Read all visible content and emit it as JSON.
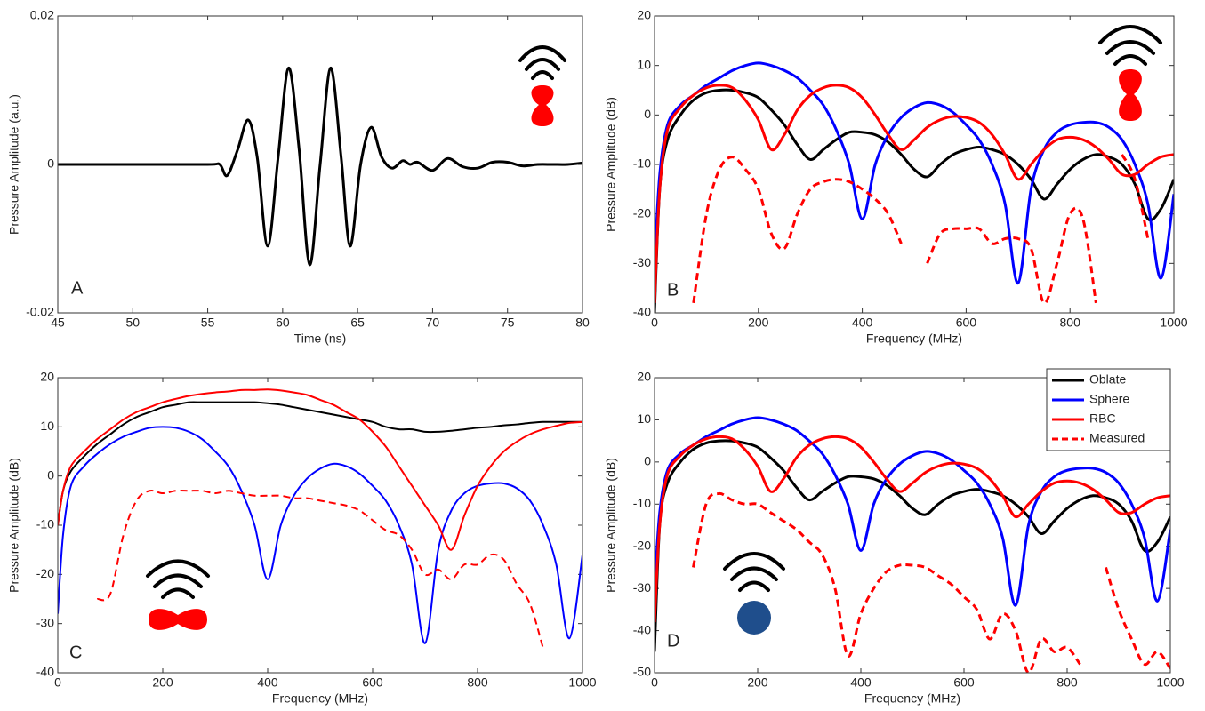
{
  "chart_data": [
    {
      "type": "line",
      "panel_label": "A",
      "xlabel": "Time (ns)",
      "ylabel": "Pressure Amplitude (a.u.)",
      "xlim": [
        45,
        80
      ],
      "xticks": [
        45,
        50,
        55,
        60,
        65,
        70,
        75,
        80
      ],
      "ylim": [
        -0.02,
        0.02
      ],
      "yticks": [
        -0.02,
        0,
        0.02
      ],
      "x": [
        45,
        50,
        55,
        55.8,
        56.3,
        57,
        57.7,
        58.3,
        59,
        59.7,
        60.4,
        61.1,
        61.8,
        62.5,
        63.2,
        63.9,
        64.5,
        65.2,
        65.9,
        66.6,
        67.3,
        68,
        68.5,
        69,
        70,
        71,
        72,
        73,
        74,
        75,
        76,
        77,
        78,
        79,
        80
      ],
      "series": [
        {
          "color": "#000000",
          "style": "solid",
          "values": [
            0,
            0,
            0,
            0,
            -0.0015,
            0.002,
            0.006,
            0.001,
            -0.011,
            0.001,
            0.013,
            0.002,
            -0.0135,
            0,
            0.013,
            0.001,
            -0.011,
            0,
            0.005,
            0.001,
            -0.0005,
            0.0005,
            0,
            0.0003,
            -0.0008,
            0.0008,
            -0.0003,
            -0.0005,
            0.0003,
            0.0003,
            -0.0002,
            0,
            0,
            0,
            0.0002
          ]
        }
      ]
    },
    {
      "type": "line",
      "panel_label": "B",
      "xlabel": "Frequency (MHz)",
      "ylabel": "Pressure Amplitude (dB)",
      "xlim": [
        0,
        1000
      ],
      "xticks": [
        0,
        200,
        400,
        600,
        800,
        1000
      ],
      "ylim": [
        -40,
        20
      ],
      "yticks": [
        -40,
        -30,
        -20,
        -10,
        0,
        10,
        20
      ],
      "x": [
        0,
        10,
        25,
        50,
        75,
        100,
        125,
        150,
        175,
        200,
        225,
        250,
        275,
        300,
        325,
        350,
        375,
        400,
        425,
        450,
        475,
        500,
        525,
        550,
        575,
        600,
        625,
        650,
        675,
        700,
        725,
        750,
        775,
        800,
        825,
        850,
        875,
        900,
        925,
        950,
        975,
        1000
      ],
      "series": [
        {
          "color": "#000000",
          "style": "solid",
          "values": [
            -40,
            -15,
            -5,
            0,
            3,
            4.5,
            5,
            5,
            4.5,
            3.5,
            1,
            -2,
            -6,
            -9,
            -7,
            -5,
            -3.5,
            -3.5,
            -4,
            -5.5,
            -8,
            -11,
            -12.5,
            -10,
            -8,
            -7,
            -6.5,
            -7,
            -8,
            -10,
            -13,
            -17,
            -14,
            -11,
            -9,
            -8,
            -8.5,
            -10,
            -14,
            -21,
            -19,
            -13
          ]
        },
        {
          "color": "#0000ff",
          "style": "solid",
          "values": [
            -30,
            -12,
            -2,
            2,
            4,
            6,
            7.5,
            9,
            10,
            10.5,
            10,
            9,
            7.5,
            5,
            2,
            -3,
            -10,
            -21,
            -10,
            -4,
            -0.5,
            1.5,
            2.5,
            2,
            0.5,
            -2,
            -5,
            -10,
            -18,
            -34,
            -15,
            -7,
            -3.5,
            -2,
            -1.5,
            -1.5,
            -2.5,
            -5,
            -10,
            -18,
            -33,
            -16
          ]
        },
        {
          "color": "#ff0000",
          "style": "solid",
          "values": [
            -38,
            -15,
            -3,
            1.5,
            4,
            5.5,
            6,
            5.5,
            3,
            -1,
            -7,
            -4,
            1,
            4,
            5.5,
            6,
            5.5,
            3.5,
            0,
            -4,
            -7,
            -5,
            -2.5,
            -1,
            -0.3,
            -0.5,
            -1.5,
            -4,
            -8,
            -13,
            -10,
            -7,
            -5,
            -4.5,
            -5,
            -6.5,
            -9,
            -12,
            -12,
            -10,
            -8.5,
            -8
          ]
        },
        {
          "color": "#ff0000",
          "style": "dashed",
          "values": [
            null,
            null,
            null,
            null,
            -38,
            -20,
            -11,
            -8.5,
            -11,
            -15,
            -24,
            -27,
            -20,
            -15,
            -13.5,
            -13,
            -13.5,
            -15,
            -17,
            -20,
            -26,
            null,
            -30,
            -24,
            -23,
            -23,
            -23,
            -26,
            -25,
            -25,
            -27,
            -38,
            -30,
            -20,
            -21,
            -38,
            null,
            -8,
            -13,
            -25,
            null,
            null
          ]
        }
      ]
    },
    {
      "type": "line",
      "panel_label": "C",
      "xlabel": "Frequency (MHz)",
      "ylabel": "Pressure Amplitude (dB)",
      "xlim": [
        0,
        1000
      ],
      "xticks": [
        0,
        200,
        400,
        600,
        800,
        1000
      ],
      "ylim": [
        -40,
        20
      ],
      "yticks": [
        -40,
        -30,
        -20,
        -10,
        0,
        10,
        20
      ],
      "x": [
        0,
        10,
        25,
        50,
        75,
        100,
        125,
        150,
        175,
        200,
        225,
        250,
        275,
        300,
        325,
        350,
        375,
        400,
        425,
        450,
        475,
        500,
        525,
        550,
        575,
        600,
        625,
        650,
        675,
        700,
        725,
        750,
        775,
        800,
        825,
        850,
        875,
        900,
        925,
        950,
        975,
        1000
      ],
      "series": [
        {
          "color": "#000000",
          "style": "solid",
          "values": [
            -10,
            -3,
            1,
            4,
            6.5,
            8.5,
            10.5,
            12,
            13,
            14,
            14.5,
            15,
            15,
            15,
            15,
            15,
            15,
            14.8,
            14.5,
            14,
            13.5,
            13,
            12.5,
            12,
            11.5,
            11,
            10,
            9.5,
            9.5,
            9,
            9,
            9.2,
            9.5,
            9.8,
            10,
            10.3,
            10.5,
            10.8,
            11,
            11,
            11,
            11
          ]
        },
        {
          "color": "#0000ff",
          "style": "solid",
          "values": [
            -28,
            -12,
            -2,
            2,
            4.5,
            6.5,
            8,
            9,
            9.8,
            10,
            9.8,
            9,
            7.5,
            5,
            2,
            -3,
            -10,
            -21,
            -10,
            -4,
            -0.5,
            1.5,
            2.5,
            2,
            0.5,
            -2,
            -5,
            -10,
            -18,
            -34,
            -15,
            -7,
            -3.5,
            -2,
            -1.5,
            -1.5,
            -2.5,
            -5,
            -10,
            -18,
            -33,
            -16
          ]
        },
        {
          "color": "#ff0000",
          "style": "solid",
          "values": [
            -10,
            -3,
            2,
            5,
            7.5,
            9.5,
            11.5,
            13,
            14,
            15,
            15.7,
            16.3,
            16.7,
            17,
            17.2,
            17.5,
            17.5,
            17.6,
            17.4,
            17,
            16.5,
            15.5,
            14.5,
            13,
            11.5,
            9,
            6,
            2,
            -2,
            -6,
            -10,
            -15,
            -8,
            -2,
            2,
            5,
            7,
            8.5,
            9.5,
            10.2,
            10.8,
            11
          ]
        },
        {
          "color": "#ff0000",
          "style": "dashed",
          "values": [
            null,
            null,
            null,
            null,
            -25,
            -24,
            -12,
            -5,
            -3,
            -3.5,
            -3,
            -3,
            -3,
            -3.5,
            -3,
            -3.5,
            -4,
            -4,
            -4,
            -4.5,
            -4.5,
            -5,
            -5.5,
            -6,
            -7,
            -9,
            -11,
            -12,
            -15,
            -20,
            -19,
            -21,
            -18,
            -18,
            -16,
            -17,
            -22,
            -26,
            -35,
            null,
            null,
            null
          ]
        }
      ]
    },
    {
      "type": "line",
      "panel_label": "D",
      "xlabel": "Frequency (MHz)",
      "ylabel": "Pressure Amplitude (dB)",
      "xlim": [
        0,
        1000
      ],
      "xticks": [
        0,
        200,
        400,
        600,
        800,
        1000
      ],
      "ylim": [
        -50,
        20
      ],
      "yticks": [
        -50,
        -40,
        -30,
        -20,
        -10,
        0,
        10,
        20
      ],
      "legend": "upper right",
      "x": [
        0,
        10,
        25,
        50,
        75,
        100,
        125,
        150,
        175,
        200,
        225,
        250,
        275,
        300,
        325,
        350,
        375,
        400,
        425,
        450,
        475,
        500,
        525,
        550,
        575,
        600,
        625,
        650,
        675,
        700,
        725,
        750,
        775,
        800,
        825,
        850,
        875,
        900,
        925,
        950,
        975,
        1000
      ],
      "series": [
        {
          "name": "Oblate",
          "color": "#000000",
          "style": "solid",
          "values": [
            -45,
            -15,
            -5,
            0,
            3,
            4.5,
            5,
            5,
            4.5,
            3.5,
            1,
            -2,
            -6,
            -9,
            -7,
            -5,
            -3.5,
            -3.5,
            -4,
            -5.5,
            -8,
            -11,
            -12.5,
            -10,
            -8,
            -7,
            -6.5,
            -7,
            -8,
            -10,
            -13,
            -17,
            -14,
            -11,
            -9,
            -8,
            -8.5,
            -10,
            -14,
            -21,
            -19,
            -13
          ]
        },
        {
          "name": "Sphere",
          "color": "#0000ff",
          "style": "solid",
          "values": [
            -30,
            -12,
            -2,
            2,
            4,
            6,
            7.5,
            9,
            10,
            10.5,
            10,
            9,
            7.5,
            5,
            2,
            -3,
            -10,
            -21,
            -10,
            -4,
            -0.5,
            1.5,
            2.5,
            2,
            0.5,
            -2,
            -5,
            -10,
            -18,
            -34,
            -15,
            -7,
            -3.5,
            -2,
            -1.5,
            -1.5,
            -2.5,
            -5,
            -10,
            -18,
            -33,
            -16
          ]
        },
        {
          "name": "RBC",
          "color": "#ff0000",
          "style": "solid",
          "values": [
            -38,
            -15,
            -3,
            1.5,
            4,
            5.5,
            6,
            5.5,
            3,
            -1,
            -7,
            -4,
            1,
            4,
            5.5,
            6,
            5.5,
            3.5,
            0,
            -4,
            -7,
            -5,
            -2.5,
            -1,
            -0.3,
            -0.5,
            -1.5,
            -4,
            -8,
            -13,
            -10,
            -7,
            -5,
            -4.5,
            -5,
            -6.5,
            -9,
            -12,
            -12,
            -10,
            -8.5,
            -8
          ]
        },
        {
          "name": "Measured",
          "color": "#ff0000",
          "style": "dashed",
          "values": [
            null,
            null,
            null,
            null,
            -25,
            -10,
            -7.5,
            -9,
            -10,
            -10,
            -12,
            -14,
            -16,
            -19,
            -22,
            -30,
            -46,
            -36,
            -30,
            -26,
            -24.5,
            -24.5,
            -25,
            -27,
            -29,
            -32,
            -35,
            -42,
            -36,
            -40,
            -50,
            -42,
            -45,
            -44,
            -48,
            null,
            -25,
            -35,
            -42,
            -48,
            -45,
            -49
          ]
        }
      ]
    }
  ]
}
